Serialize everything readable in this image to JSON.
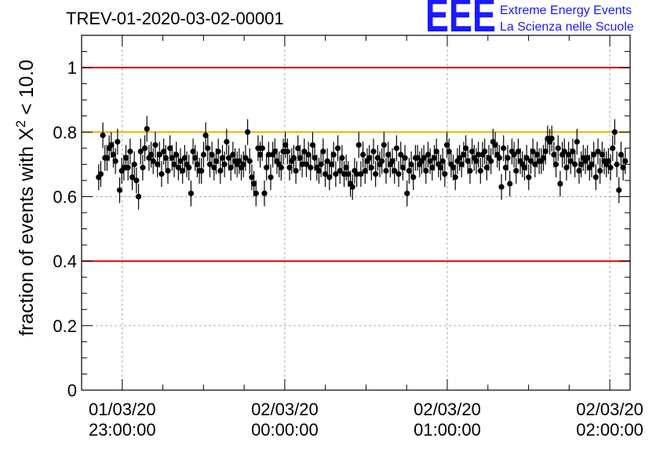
{
  "title": "TREV-01-2020-03-02-00001",
  "logo": {
    "mark": "EEE",
    "line1": "Extreme Energy Events",
    "line2": "La Scienza nelle Scuole"
  },
  "chart_data": {
    "type": "scatter",
    "title": "TREV-01-2020-03-02-00001",
    "xlabel": "",
    "ylabel_main": "fraction of events with X",
    "ylabel_sup": "2",
    "ylabel_tail": " < 10.0",
    "ylim": [
      0,
      1.1
    ],
    "yticks": [
      "0",
      "0.2",
      "0.4",
      "0.6",
      "0.8",
      "1"
    ],
    "xlim_minutes": [
      -10,
      125
    ],
    "xticks": [
      {
        "minute": 0,
        "date": "01/03/20",
        "time": "23:00:00"
      },
      {
        "minute": 40,
        "date": "02/03/20",
        "time": "00:00:00"
      },
      {
        "minute": 80,
        "date": "02/03/20",
        "time": "01:00:00"
      },
      {
        "minute": 120,
        "date": "02/03/20",
        "time": "02:00:00"
      }
    ],
    "reference_lines": [
      {
        "y": 1.0,
        "color": "#e00000"
      },
      {
        "y": 0.8,
        "color": "#f0b000"
      },
      {
        "y": 0.4,
        "color": "#e00000"
      }
    ],
    "grid": true,
    "marker_color": "#000000",
    "y_error": 0.04,
    "series": [
      {
        "values": [
          0.66,
          0.67,
          0.79,
          0.72,
          0.72,
          0.75,
          0.76,
          0.73,
          0.71,
          0.77,
          0.62,
          0.68,
          0.69,
          0.72,
          0.69,
          0.74,
          0.66,
          0.7,
          0.65,
          0.6,
          0.74,
          0.69,
          0.75,
          0.81,
          0.72,
          0.73,
          0.71,
          0.76,
          0.7,
          0.73,
          0.67,
          0.74,
          0.72,
          0.68,
          0.75,
          0.72,
          0.7,
          0.73,
          0.69,
          0.71,
          0.68,
          0.72,
          0.7,
          0.69,
          0.61,
          0.74,
          0.72,
          0.7,
          0.68,
          0.68,
          0.73,
          0.79,
          0.75,
          0.7,
          0.73,
          0.69,
          0.71,
          0.74,
          0.68,
          0.72,
          0.7,
          0.77,
          0.72,
          0.69,
          0.73,
          0.71,
          0.7,
          0.71,
          0.69,
          0.7,
          0.72,
          0.8,
          0.71,
          0.66,
          0.64,
          0.61,
          0.75,
          0.73,
          0.75,
          0.61,
          0.69,
          0.73,
          0.66,
          0.73,
          0.74,
          0.71,
          0.7,
          0.69,
          0.74,
          0.76,
          0.74,
          0.69,
          0.71,
          0.72,
          0.68,
          0.75,
          0.72,
          0.7,
          0.74,
          0.7,
          0.73,
          0.69,
          0.76,
          0.72,
          0.69,
          0.68,
          0.7,
          0.74,
          0.67,
          0.71,
          0.66,
          0.7,
          0.73,
          0.67,
          0.75,
          0.68,
          0.72,
          0.67,
          0.69,
          0.67,
          0.64,
          0.63,
          0.68,
          0.67,
          0.76,
          0.67,
          0.73,
          0.68,
          0.71,
          0.72,
          0.69,
          0.74,
          0.67,
          0.72,
          0.7,
          0.71,
          0.76,
          0.68,
          0.73,
          0.7,
          0.71,
          0.68,
          0.75,
          0.67,
          0.73,
          0.69,
          0.72,
          0.61,
          0.68,
          0.7,
          0.66,
          0.72,
          0.72,
          0.7,
          0.71,
          0.72,
          0.68,
          0.73,
          0.71,
          0.69,
          0.72,
          0.74,
          0.7,
          0.69,
          0.71,
          0.67,
          0.76,
          0.74,
          0.7,
          0.69,
          0.66,
          0.71,
          0.72,
          0.7,
          0.73,
          0.75,
          0.71,
          0.68,
          0.74,
          0.72,
          0.71,
          0.73,
          0.68,
          0.73,
          0.74,
          0.69,
          0.72,
          0.71,
          0.77,
          0.76,
          0.73,
          0.72,
          0.63,
          0.75,
          0.69,
          0.72,
          0.64,
          0.74,
          0.73,
          0.68,
          0.74,
          0.71,
          0.7,
          0.69,
          0.72,
          0.66,
          0.71,
          0.74,
          0.7,
          0.73,
          0.71,
          0.71,
          0.72,
          0.74,
          0.78,
          0.77,
          0.78,
          0.73,
          0.7,
          0.75,
          0.64,
          0.73,
          0.74,
          0.69,
          0.73,
          0.71,
          0.74,
          0.7,
          0.77,
          0.68,
          0.7,
          0.72,
          0.71,
          0.72,
          0.69,
          0.7,
          0.73,
          0.66,
          0.74,
          0.68,
          0.73,
          0.71,
          0.7,
          0.71,
          0.69,
          0.75,
          0.8,
          0.7,
          0.62,
          0.73,
          0.69,
          0.71
        ]
      }
    ]
  }
}
